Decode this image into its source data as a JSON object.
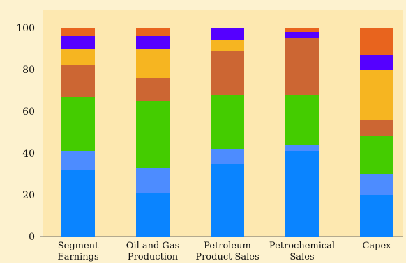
{
  "chart_data": {
    "type": "bar",
    "stacked": true,
    "title": "",
    "xlabel": "",
    "ylabel": "",
    "ylim": [
      0,
      105
    ],
    "yticks": [
      "0",
      "20",
      "40",
      "60",
      "80",
      "100"
    ],
    "grid": false,
    "legend": "none",
    "categories": [
      [
        "Segment",
        "Earnings"
      ],
      [
        "Oil and Gas",
        "Production"
      ],
      [
        "Petroleum",
        "Product Sales"
      ],
      [
        "Petrochemical",
        "Sales"
      ],
      [
        "Capex"
      ]
    ],
    "series": [
      {
        "color": "#0a84ff",
        "values": [
          32,
          21,
          35,
          41,
          20
        ]
      },
      {
        "color": "#4d8cff",
        "values": [
          9,
          12,
          7,
          3,
          10
        ]
      },
      {
        "color": "#44cc00",
        "values": [
          26,
          32,
          26,
          24,
          18
        ]
      },
      {
        "color": "#cc6633",
        "values": [
          15,
          11,
          21,
          27,
          8
        ]
      },
      {
        "color": "#f6b521",
        "values": [
          8,
          14,
          5,
          0,
          24
        ]
      },
      {
        "color": "#5500ff",
        "values": [
          6,
          6,
          6,
          3,
          7
        ]
      },
      {
        "color": "#e8641e",
        "values": [
          4,
          4,
          0,
          2,
          13
        ]
      }
    ]
  }
}
